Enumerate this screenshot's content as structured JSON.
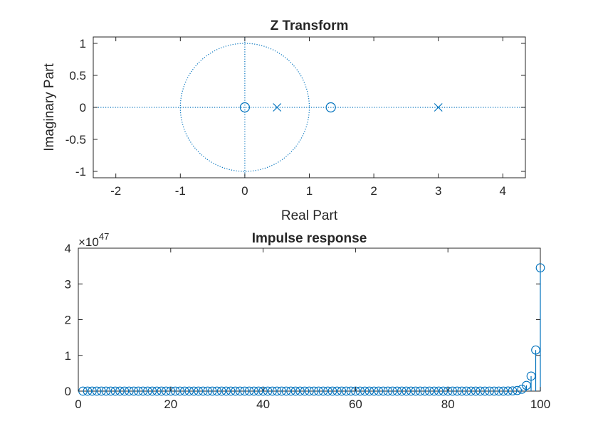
{
  "colors": {
    "series": "#0072BD",
    "axis": "#262626",
    "background": "#ffffff"
  },
  "chart_data": [
    {
      "type": "scatter",
      "title": "Z Transform",
      "xlabel": "Real Part",
      "ylabel": "Imaginary Part",
      "xlim": [
        -2.35,
        4.35
      ],
      "ylim": [
        -1.1,
        1.1
      ],
      "xticks": [
        -2,
        -1,
        0,
        1,
        2,
        3,
        4
      ],
      "xtick_labels": [
        "-2",
        "-1",
        "0",
        "1",
        "2",
        "3",
        "4"
      ],
      "yticks": [
        -1,
        -0.5,
        0,
        0.5,
        1
      ],
      "ytick_labels": [
        "-1",
        "-0.5",
        "0",
        "0.5",
        "1"
      ],
      "unit_circle": true,
      "series": [
        {
          "marker": "circle",
          "points": [
            [
              0,
              0
            ],
            [
              1.333,
              0
            ]
          ]
        },
        {
          "marker": "x",
          "points": [
            [
              0.5,
              0
            ],
            [
              3,
              0
            ]
          ]
        }
      ]
    },
    {
      "type": "stem",
      "title": "Impulse response",
      "xlabel": "",
      "ylabel": "",
      "exponent_label": "×10",
      "exponent_power": "47",
      "scale": 1e+47,
      "xlim": [
        0,
        100
      ],
      "ylim": [
        0,
        4
      ],
      "xticks": [
        0,
        20,
        40,
        60,
        80,
        100
      ],
      "xtick_labels": [
        "0",
        "20",
        "40",
        "60",
        "80",
        "100"
      ],
      "yticks": [
        0,
        1,
        2,
        3,
        4
      ],
      "ytick_labels": [
        "0",
        "1",
        "2",
        "3",
        "4"
      ],
      "n_start": 1,
      "n_end": 100,
      "values_scaled": [
        0,
        0,
        0,
        0,
        0,
        0,
        0,
        0,
        0,
        0,
        0,
        0,
        0,
        0,
        0,
        0,
        0,
        0,
        0,
        0,
        0,
        0,
        0,
        0,
        0,
        0,
        0,
        0,
        0,
        0,
        0,
        0,
        0,
        0,
        0,
        0,
        0,
        0,
        0,
        0,
        0,
        0,
        0,
        0,
        0,
        0,
        0,
        0,
        0,
        0,
        0,
        0,
        0,
        0,
        0,
        0,
        0,
        0,
        0,
        0,
        0,
        0,
        0,
        0,
        0,
        0,
        0,
        0,
        0,
        0,
        0,
        0,
        0,
        0,
        0,
        0,
        0,
        0,
        0,
        0,
        0,
        0,
        0,
        0,
        0,
        0,
        0,
        0,
        0,
        0,
        0.0002,
        0.0007,
        0.002,
        0.006,
        0.018,
        0.053,
        0.16,
        0.42,
        1.15,
        3.45
      ]
    }
  ]
}
